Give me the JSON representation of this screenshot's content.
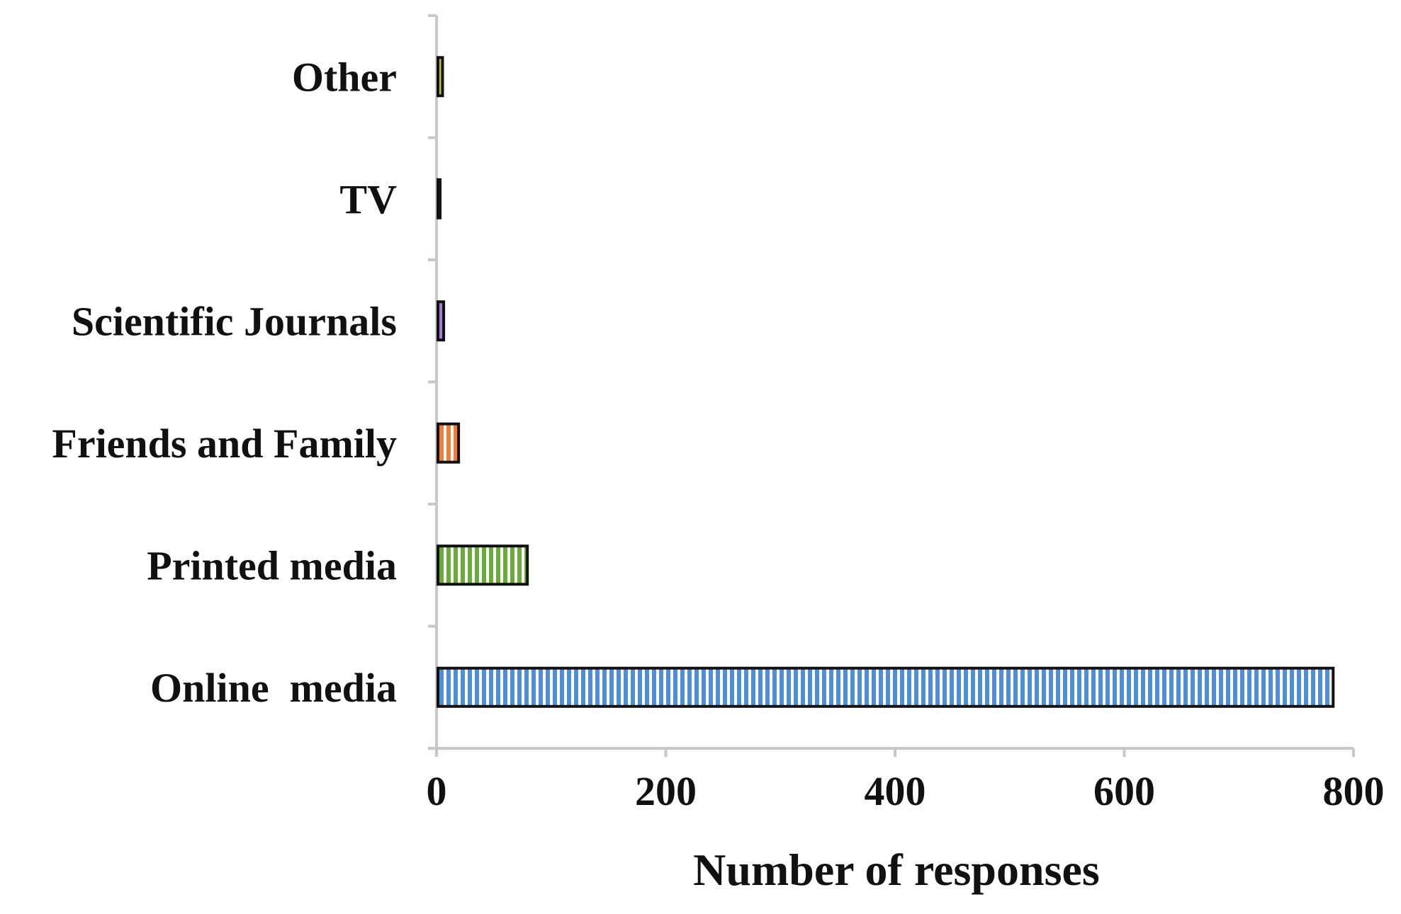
{
  "chart_data": {
    "type": "bar",
    "orientation": "horizontal",
    "categories": [
      "Online  media",
      "Printed media",
      "Friends and Family",
      "Scientific Journals",
      "TV",
      "Other"
    ],
    "values": [
      781,
      78,
      18,
      5,
      1,
      4
    ],
    "xlabel": "Number of responses",
    "ylabel": "",
    "xlim": [
      0,
      800
    ],
    "xticks": [
      "0",
      "200",
      "400",
      "600",
      "800"
    ],
    "grid": false,
    "legend": "none",
    "colors": [
      "#4f8fd8",
      "#6aaa3a",
      "#ec7f3a",
      "#a879d6",
      "#3a3a3a",
      "#c9c33a"
    ]
  }
}
